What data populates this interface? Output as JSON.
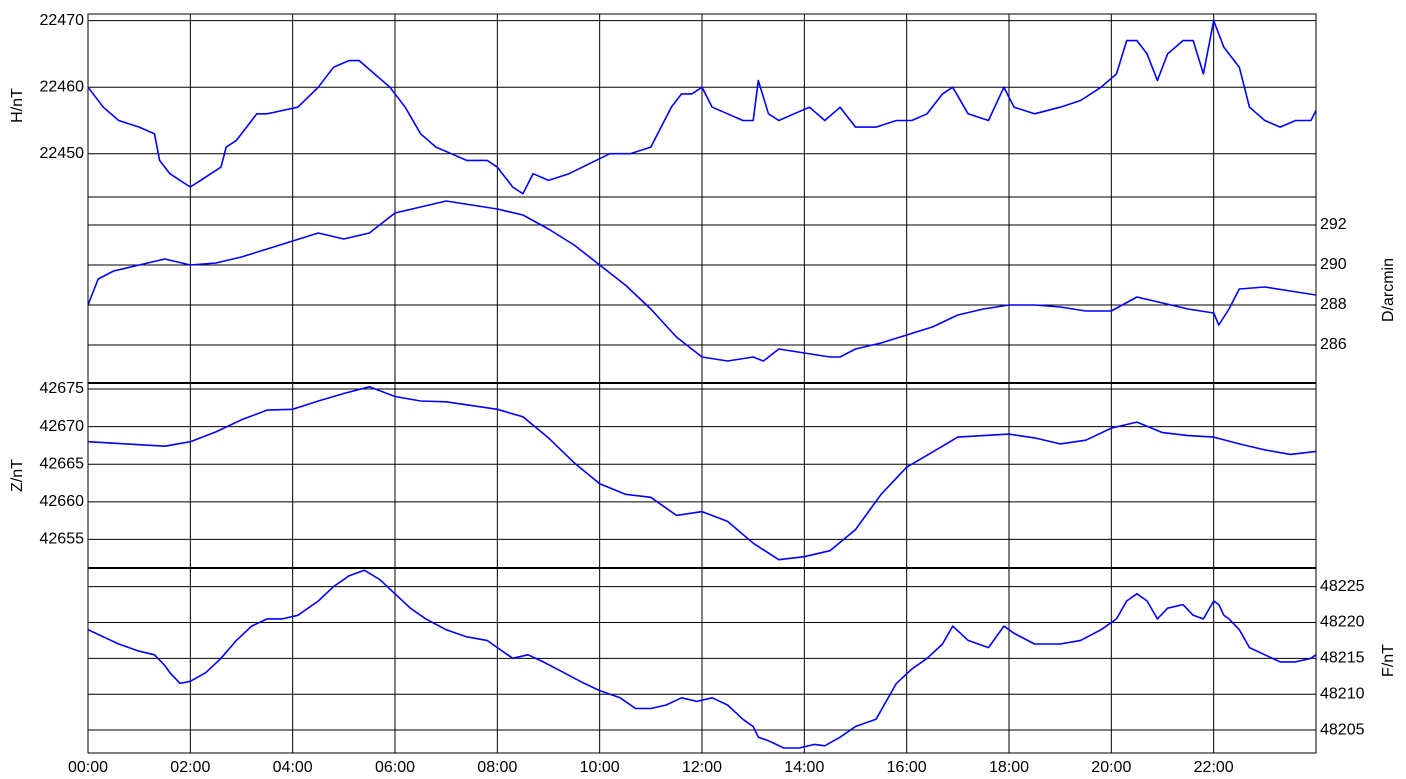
{
  "chart_data": {
    "type": "line",
    "line_color": "#0000ff",
    "grid": true,
    "x_tick_labels": [
      "00:00",
      "02:00",
      "04:00",
      "06:00",
      "08:00",
      "10:00",
      "12:00",
      "14:00",
      "16:00",
      "18:00",
      "20:00",
      "22:00"
    ],
    "panels": [
      {
        "id": "H",
        "ylabel": "H/nT",
        "axis_side": "left",
        "ylim": [
          22443.5,
          22471
        ],
        "gridlines": [
          22470,
          22460,
          22450
        ],
        "ticks": [
          {
            "value": 22470,
            "label": "22470"
          },
          {
            "value": 22460,
            "label": "22460"
          },
          {
            "value": 22450,
            "label": "22450"
          }
        ],
        "series": {
          "x_hours": [
            0,
            0.3,
            0.6,
            1.0,
            1.3,
            1.4,
            1.5,
            1.6,
            1.8,
            2.0,
            2.2,
            2.4,
            2.6,
            2.7,
            2.9,
            3.1,
            3.3,
            3.5,
            3.8,
            4.1,
            4.5,
            4.8,
            5.1,
            5.3,
            5.6,
            5.9,
            6.2,
            6.5,
            6.8,
            7.1,
            7.4,
            7.8,
            8.0,
            8.1,
            8.3,
            8.5,
            8.7,
            9.0,
            9.4,
            9.8,
            10.2,
            10.6,
            11.0,
            11.2,
            11.4,
            11.6,
            11.8,
            12.0,
            12.2,
            12.5,
            12.8,
            13.0,
            13.1,
            13.3,
            13.5,
            13.8,
            14.1,
            14.4,
            14.7,
            15.0,
            15.4,
            15.8,
            16.1,
            16.4,
            16.7,
            16.9,
            17.2,
            17.6,
            17.9,
            18.1,
            18.5,
            19.0,
            19.4,
            19.8,
            20.1,
            20.3,
            20.5,
            20.7,
            20.9,
            21.1,
            21.4,
            21.6,
            21.8,
            22.0,
            22.1,
            22.2,
            22.3,
            22.5,
            22.7,
            23.0,
            23.3,
            23.6,
            23.9,
            24.0
          ],
          "values": [
            22460,
            22457,
            22455,
            22454,
            22453,
            22449,
            22448,
            22447,
            22446,
            22445,
            22446,
            22447,
            22448,
            22451,
            22452,
            22454,
            22456,
            22456,
            22456.5,
            22457,
            22460,
            22463,
            22464,
            22464,
            22462,
            22460,
            22457,
            22453,
            22451,
            22450,
            22449,
            22449,
            22448,
            22447,
            22445,
            22444,
            22447,
            22446,
            22447,
            22448.5,
            22450,
            22450,
            22451,
            22454,
            22457,
            22459,
            22459,
            22460,
            22457,
            22456,
            22455,
            22455,
            22461,
            22456,
            22455,
            22456,
            22457,
            22455,
            22457,
            22454,
            22454,
            22455,
            22455,
            22456,
            22459,
            22460,
            22456,
            22455,
            22460,
            22457,
            22456,
            22457,
            22458,
            22460,
            22462,
            22467,
            22467,
            22465,
            22461,
            22465,
            22467,
            22467,
            22462,
            22470,
            22468,
            22466,
            22465,
            22463,
            22457,
            22455,
            22454,
            22455,
            22455,
            22456.5
          ]
        }
      },
      {
        "id": "D",
        "ylabel": "D/arcmin",
        "axis_side": "right",
        "ylim": [
          284.1,
          293.4
        ],
        "gridlines": [
          292,
          290,
          288,
          286
        ],
        "ticks": [
          {
            "value": 292,
            "label": "292"
          },
          {
            "value": 290,
            "label": "290"
          },
          {
            "value": 288,
            "label": "288"
          },
          {
            "value": 286,
            "label": "286"
          }
        ],
        "series": {
          "x_hours": [
            0,
            0.2,
            0.5,
            1.0,
            1.5,
            2.0,
            2.5,
            3.0,
            3.5,
            4.0,
            4.5,
            5.0,
            5.5,
            6.0,
            6.5,
            7.0,
            7.5,
            8.0,
            8.5,
            9.0,
            9.5,
            10.0,
            10.5,
            11.0,
            11.5,
            12.0,
            12.5,
            13.0,
            13.2,
            13.5,
            14.0,
            14.5,
            14.7,
            15.0,
            15.5,
            16.0,
            16.5,
            17.0,
            17.5,
            18.0,
            18.5,
            19.0,
            19.5,
            20.0,
            20.5,
            21.0,
            21.5,
            22.0,
            22.1,
            22.3,
            22.5,
            23.0,
            23.5,
            24.0
          ],
          "values": [
            288,
            289.3,
            289.7,
            290,
            290.3,
            290,
            290.1,
            290.4,
            290.8,
            291.2,
            291.6,
            291.3,
            291.6,
            292.6,
            292.9,
            293.2,
            293,
            292.8,
            292.5,
            291.8,
            291,
            290,
            289,
            287.8,
            286.4,
            285.4,
            285.2,
            285.4,
            285.2,
            285.8,
            285.6,
            285.4,
            285.4,
            285.8,
            286.1,
            286.5,
            286.9,
            287.5,
            287.8,
            288,
            288,
            287.9,
            287.7,
            287.7,
            288.4,
            288.1,
            287.8,
            287.6,
            287,
            287.8,
            288.8,
            288.9,
            288.7,
            288.5
          ]
        }
      },
      {
        "id": "Z",
        "ylabel": "Z/nT",
        "axis_side": "left",
        "ylim": [
          42651.2,
          42675.8
        ],
        "gridlines": [
          42675,
          42670,
          42665,
          42660,
          42655
        ],
        "ticks": [
          {
            "value": 42675,
            "label": "42675"
          },
          {
            "value": 42670,
            "label": "42670"
          },
          {
            "value": 42665,
            "label": "42665"
          },
          {
            "value": 42660,
            "label": "42660"
          },
          {
            "value": 42655,
            "label": "42655"
          }
        ],
        "series": {
          "x_hours": [
            0,
            0.5,
            1.0,
            1.5,
            2.0,
            2.5,
            3.0,
            3.5,
            4.0,
            4.5,
            5.0,
            5.5,
            6.0,
            6.5,
            7.0,
            7.5,
            8.0,
            8.5,
            9.0,
            9.5,
            10.0,
            10.5,
            11.0,
            11.5,
            12.0,
            12.5,
            13.0,
            13.5,
            14.0,
            14.5,
            15.0,
            15.5,
            16.0,
            16.5,
            17.0,
            17.5,
            18.0,
            18.5,
            19.0,
            19.5,
            20.0,
            20.5,
            21.0,
            21.5,
            22.0,
            22.5,
            23.0,
            23.5,
            24.0
          ],
          "values": [
            42668,
            42667.8,
            42667.6,
            42667.4,
            42668,
            42669.3,
            42670.9,
            42672.2,
            42672.3,
            42673.4,
            42674.4,
            42675.3,
            42674,
            42673.4,
            42673.3,
            42672.8,
            42672.3,
            42671.3,
            42668.5,
            42665.2,
            42662.4,
            42661,
            42660.6,
            42658.2,
            42658.7,
            42657.4,
            42654.5,
            42652.3,
            42652.7,
            42653.5,
            42656.3,
            42661,
            42664.6,
            42666.6,
            42668.6,
            42668.8,
            42669,
            42668.5,
            42667.7,
            42668.2,
            42669.8,
            42670.6,
            42669.2,
            42668.8,
            42668.6,
            42667.7,
            42666.9,
            42666.3,
            42666.7
          ]
        }
      },
      {
        "id": "F",
        "ylabel": "F/nT",
        "axis_side": "right",
        "ylim": [
          48201.8,
          48227.6
        ],
        "gridlines": [
          48225,
          48220,
          48215,
          48210,
          48205
        ],
        "ticks": [
          {
            "value": 48225,
            "label": "48225"
          },
          {
            "value": 48220,
            "label": "48220"
          },
          {
            "value": 48215,
            "label": "48215"
          },
          {
            "value": 48210,
            "label": "48210"
          },
          {
            "value": 48205,
            "label": "48205"
          }
        ],
        "series": {
          "x_hours": [
            0,
            0.3,
            0.6,
            1.0,
            1.3,
            1.5,
            1.6,
            1.8,
            2.0,
            2.3,
            2.6,
            2.9,
            3.2,
            3.5,
            3.8,
            4.1,
            4.5,
            4.8,
            5.1,
            5.4,
            5.7,
            6.0,
            6.3,
            6.6,
            7.0,
            7.4,
            7.8,
            8.0,
            8.3,
            8.6,
            8.9,
            9.3,
            9.7,
            10.0,
            10.4,
            10.7,
            11.0,
            11.3,
            11.6,
            11.9,
            12.2,
            12.5,
            12.8,
            13.0,
            13.1,
            13.3,
            13.6,
            13.9,
            14.2,
            14.4,
            14.7,
            15.0,
            15.4,
            15.8,
            16.1,
            16.4,
            16.7,
            16.9,
            17.2,
            17.6,
            17.9,
            18.1,
            18.5,
            19.0,
            19.4,
            19.8,
            20.1,
            20.3,
            20.5,
            20.7,
            20.9,
            21.1,
            21.4,
            21.6,
            21.8,
            22.0,
            22.1,
            22.2,
            22.3,
            22.5,
            22.7,
            23.0,
            23.3,
            23.6,
            23.9,
            24.0
          ],
          "values": [
            48219,
            48218,
            48217,
            48216,
            48215.5,
            48214,
            48213,
            48211.5,
            48211.8,
            48213,
            48215,
            48217.5,
            48219.5,
            48220.5,
            48220.5,
            48221,
            48223,
            48225,
            48226.5,
            48227.3,
            48226,
            48224,
            48222,
            48220.5,
            48219,
            48218,
            48217.5,
            48216.5,
            48215,
            48215.5,
            48214.5,
            48213,
            48211.5,
            48210.5,
            48209.5,
            48208,
            48208,
            48208.5,
            48209.5,
            48209,
            48209.5,
            48208.5,
            48206.5,
            48205.5,
            48204,
            48203.5,
            48202.5,
            48202.5,
            48203,
            48202.8,
            48204,
            48205.5,
            48206.5,
            48211.5,
            48213.5,
            48215,
            48217,
            48219.5,
            48217.5,
            48216.5,
            48219.5,
            48218.5,
            48217,
            48217,
            48217.5,
            48219,
            48220.5,
            48223,
            48224,
            48223,
            48220.5,
            48222,
            48222.5,
            48221,
            48220.5,
            48223,
            48222.5,
            48221,
            48220.5,
            48219,
            48216.5,
            48215.5,
            48214.5,
            48214.5,
            48215,
            48215.5
          ]
        }
      }
    ]
  }
}
